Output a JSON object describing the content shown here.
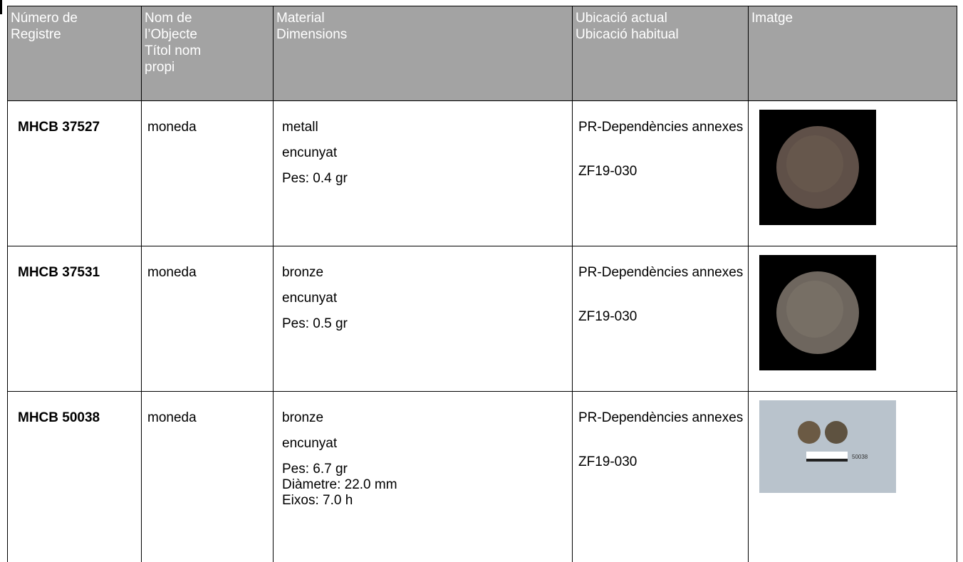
{
  "table": {
    "header": [
      [
        "Número de",
        "Registre"
      ],
      [
        "Nom de",
        "l’Objecte",
        "Títol nom",
        "propi"
      ],
      [
        "Material",
        "Dimensions"
      ],
      [
        "Ubicació actual",
        "Ubicació habitual"
      ],
      [
        "Imatge"
      ]
    ],
    "rows": [
      {
        "registre": "MHCB 37527",
        "nom": "moneda",
        "material": [
          "metall",
          "encunyat"
        ],
        "details": [
          "Pes: 0.4 gr"
        ],
        "ubicacio_actual": "PR-Dependències annexes",
        "ubicacio_habitual": "ZF19-030"
      },
      {
        "registre": "MHCB 37531",
        "nom": "moneda",
        "material": [
          "bronze",
          "encunyat"
        ],
        "details": [
          "Pes: 0.5 gr"
        ],
        "ubicacio_actual": "PR-Dependències annexes",
        "ubicacio_habitual": "ZF19-030"
      },
      {
        "registre": "MHCB 50038",
        "nom": "moneda",
        "material": [
          "bronze",
          "encunyat"
        ],
        "details": [
          "Pes: 6.7 gr",
          "Diàmetre: 22.0 mm",
          "Eixos: 7.0 h"
        ],
        "ubicacio_actual": "PR-Dependències annexes",
        "ubicacio_habitual": "ZF19-030",
        "image_label": "50038"
      }
    ]
  }
}
